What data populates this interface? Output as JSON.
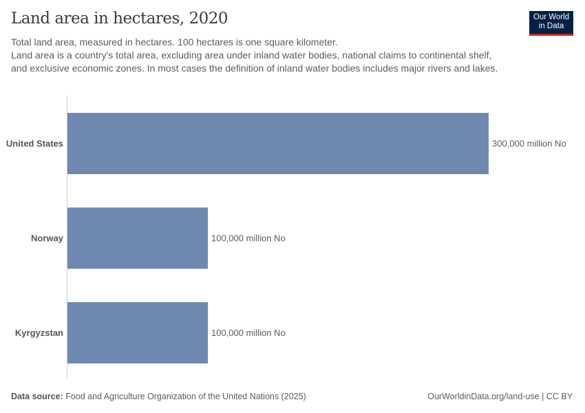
{
  "header": {
    "title": "Land area in hectares, 2020",
    "subtitle_lines": [
      "Total land area, measured in hectares. 100 hectares is one square kilometer.",
      "Land area is a country's total area, excluding area under inland water bodies, national claims to continental shelf, and exclusive economic zones. In most cases the definition of inland water bodies includes major rivers and lakes."
    ],
    "logo_text": [
      "Our World",
      "in Data"
    ]
  },
  "chart_data": {
    "type": "bar",
    "orientation": "horizontal",
    "title": "Land area in hectares, 2020",
    "categories": [
      "United States",
      "Norway",
      "Kyrgyzstan"
    ],
    "values": [
      300000,
      100000,
      100000
    ],
    "unit": "million",
    "value_labels": [
      "300,000 million No",
      "100,000 million No",
      "100,000 million No"
    ],
    "bar_color": "#6f88b0",
    "xlim": [
      0,
      300000
    ],
    "grid": false
  },
  "footer": {
    "source_label": "Data source:",
    "source_text": " Food and Agriculture Organization of the United Nations (2025)",
    "url_license": "OurWorldinData.org/land-use | CC BY"
  }
}
